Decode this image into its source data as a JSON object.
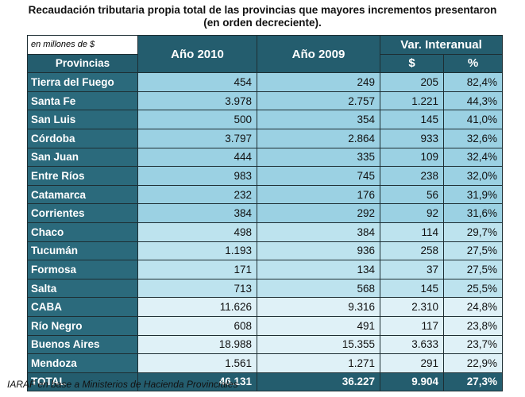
{
  "title_line1": "Recaudación tributaria propia total de las provincias que mayores incrementos presentaron",
  "title_line2": "(en orden decreciente).",
  "unit_label": "en millones de $",
  "headers": {
    "provincias": "Provincias",
    "y2010": "Año 2010",
    "y2009": "Año 2009",
    "var": "Var. Interanual",
    "var_abs": "$",
    "var_pct": "%"
  },
  "rows": [
    {
      "prov": "Tierra del Fuego",
      "y2010": "454",
      "y2009": "249",
      "abs": "205",
      "pct": "82,4%"
    },
    {
      "prov": "Santa Fe",
      "y2010": "3.978",
      "y2009": "2.757",
      "abs": "1.221",
      "pct": "44,3%"
    },
    {
      "prov": "San Luis",
      "y2010": "500",
      "y2009": "354",
      "abs": "145",
      "pct": "41,0%"
    },
    {
      "prov": "Córdoba",
      "y2010": "3.797",
      "y2009": "2.864",
      "abs": "933",
      "pct": "32,6%"
    },
    {
      "prov": "San Juan",
      "y2010": "444",
      "y2009": "335",
      "abs": "109",
      "pct": "32,4%"
    },
    {
      "prov": "Entre Ríos",
      "y2010": "983",
      "y2009": "745",
      "abs": "238",
      "pct": "32,0%"
    },
    {
      "prov": "Catamarca",
      "y2010": "232",
      "y2009": "176",
      "abs": "56",
      "pct": "31,9%"
    },
    {
      "prov": "Corrientes",
      "y2010": "384",
      "y2009": "292",
      "abs": "92",
      "pct": "31,6%"
    },
    {
      "prov": "Chaco",
      "y2010": "498",
      "y2009": "384",
      "abs": "114",
      "pct": "29,7%"
    },
    {
      "prov": "Tucumán",
      "y2010": "1.193",
      "y2009": "936",
      "abs": "258",
      "pct": "27,5%"
    },
    {
      "prov": "Formosa",
      "y2010": "171",
      "y2009": "134",
      "abs": "37",
      "pct": "27,5%"
    },
    {
      "prov": "Salta",
      "y2010": "713",
      "y2009": "568",
      "abs": "145",
      "pct": "25,5%"
    },
    {
      "prov": "CABA",
      "y2010": "11.626",
      "y2009": "9.316",
      "abs": "2.310",
      "pct": "24,8%"
    },
    {
      "prov": "Río Negro",
      "y2010": "608",
      "y2009": "491",
      "abs": "117",
      "pct": "23,8%"
    },
    {
      "prov": "Buenos Aires",
      "y2010": "18.988",
      "y2009": "15.355",
      "abs": "3.633",
      "pct": "23,7%"
    },
    {
      "prov": "Mendoza",
      "y2010": "1.561",
      "y2009": "1.271",
      "abs": "291",
      "pct": "22,9%"
    }
  ],
  "total": {
    "label": "TOTAL",
    "y2010": "46.131",
    "y2009": "36.227",
    "abs": "9.904",
    "pct": "27,3%"
  },
  "source": "IARAF en base a Ministerios de Hacienda Provinciales",
  "colors": {
    "header": "#245d6e",
    "band1": "#9bd1e3",
    "band2": "#bde3ee",
    "band3": "#dff1f7"
  }
}
